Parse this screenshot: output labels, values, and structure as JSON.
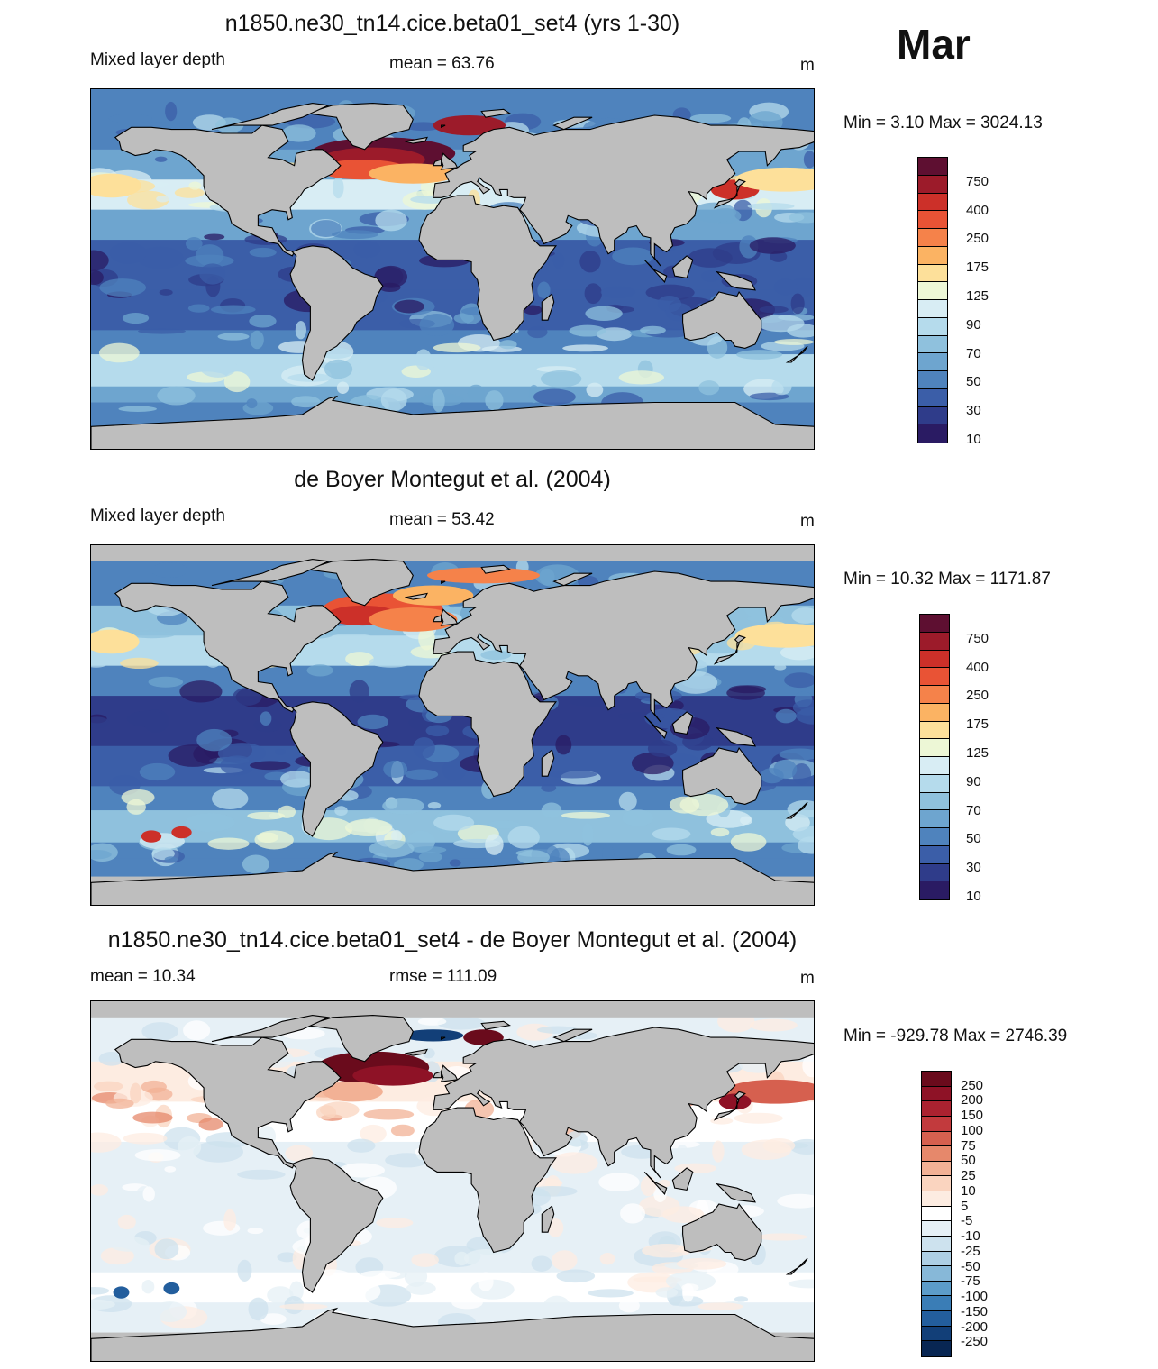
{
  "month": "Mar",
  "panels": [
    {
      "title": "n1850.ne30_tn14.cice.beta01_set4 (yrs 1-30)",
      "left_label": "Mixed layer depth",
      "center_label": "mean =  63.76",
      "right_label": "m",
      "minmax": "Min =   3.10 Max = 3024.13",
      "colorbar": {
        "colors": [
          "#ffffff"
        ],
        "labels": [
          "750",
          "400",
          "250",
          "175",
          "125",
          "90",
          "70",
          "50",
          "30",
          "10"
        ]
      }
    },
    {
      "title": "de Boyer Montegut et al. (2004)",
      "left_label": "Mixed layer depth",
      "center_label": "mean =  53.42",
      "right_label": "m",
      "minmax": "Min =  10.32 Max = 1171.87",
      "colorbar": {
        "labels": [
          "750",
          "400",
          "250",
          "175",
          "125",
          "90",
          "70",
          "50",
          "30",
          "10"
        ]
      }
    },
    {
      "title": "n1850.ne30_tn14.cice.beta01_set4 - de Boyer Montegut et al. (2004)",
      "left_label": "mean =  10.34",
      "center_label": "rmse = 111.09",
      "right_label": "m",
      "minmax": "Min = -929.78 Max = 2746.39",
      "colorbar": {
        "labels": [
          "250",
          "200",
          "150",
          "100",
          "75",
          "50",
          "25",
          "10",
          "5",
          "-5",
          "-10",
          "-25",
          "-50",
          "-75",
          "-100",
          "-150",
          "-200",
          "-250"
        ]
      }
    }
  ],
  "colors": {
    "land": "#bebebe",
    "seq_scale": [
      "#5e0f31",
      "#9c1b2a",
      "#cc3029",
      "#e95335",
      "#f5824a",
      "#fbb363",
      "#fde09a",
      "#edf7d6",
      "#d8edf4",
      "#b5dbec",
      "#8fc1dd",
      "#6ea5cf",
      "#4f83bd",
      "#3b5ea8",
      "#2f3c8a",
      "#2a1b63"
    ],
    "div_scale": [
      "#6a0b1c",
      "#8e1226",
      "#ab2230",
      "#c23a3d",
      "#d6604f",
      "#e6886b",
      "#f2b195",
      "#fad4bf",
      "#fdece1",
      "#ffffff",
      "#e6f0f6",
      "#cde2ee",
      "#aecfe4",
      "#87b8d8",
      "#5c9cc9",
      "#3a7db6",
      "#235e9d",
      "#123f78",
      "#082653"
    ]
  }
}
